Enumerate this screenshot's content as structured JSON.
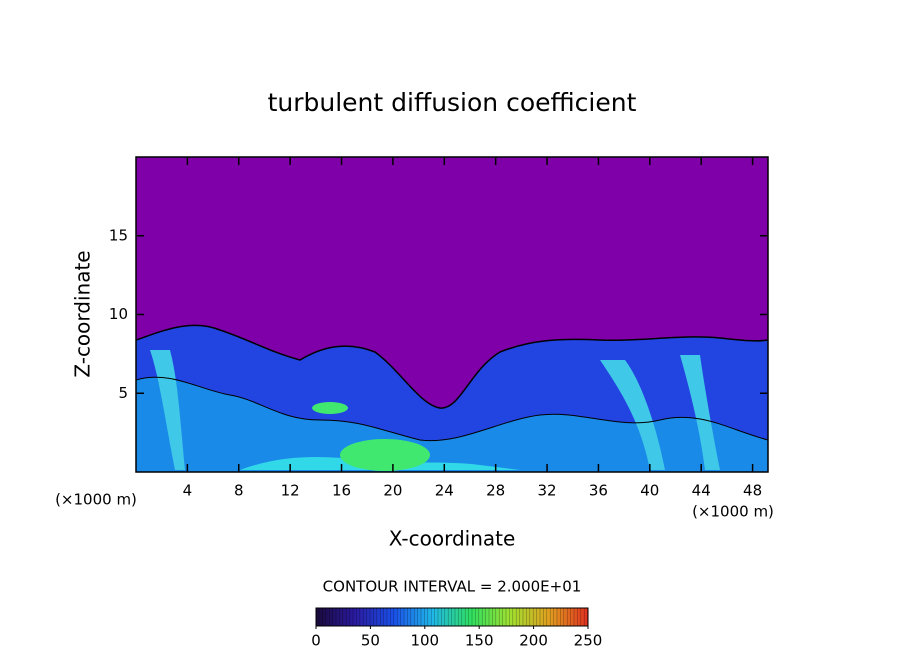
{
  "chart_data": {
    "type": "contour",
    "title": "turbulent diffusion coefficient",
    "xlabel": "X-coordinate",
    "ylabel": "Z-coordinate",
    "x_units": [
      "(×1000 m)",
      "(×1000 m)"
    ],
    "xlim": [
      0,
      49.2
    ],
    "xticks": [
      4,
      8,
      12,
      16,
      20,
      24,
      28,
      32,
      36,
      40,
      44,
      48
    ],
    "ylim": [
      0,
      20
    ],
    "yticks": [
      5,
      10,
      15
    ],
    "contour_note": "CONTOUR INTERVAL = 2.000E+01",
    "colorbar": {
      "lim": [
        0,
        250
      ],
      "ticks": [
        0,
        50,
        100,
        150,
        200,
        250
      ],
      "colors": [
        "#1a0a3a",
        "#2a1aa0",
        "#1a50e8",
        "#20b8e8",
        "#30e060",
        "#a0e030",
        "#e0a020",
        "#e03020"
      ]
    }
  }
}
